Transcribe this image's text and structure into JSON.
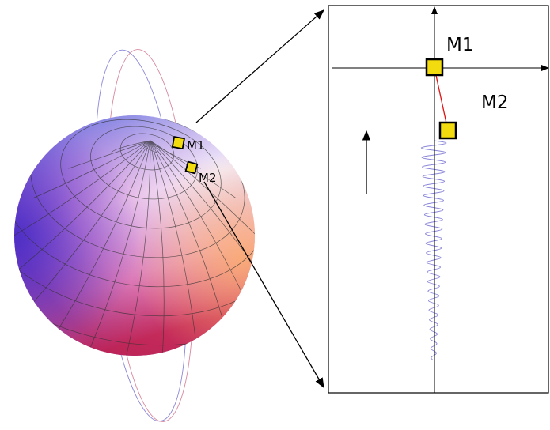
{
  "sphere": {
    "markers": [
      {
        "label": "M1"
      },
      {
        "label": "M2"
      }
    ]
  },
  "zoom": {
    "markers": [
      {
        "label": "M1"
      },
      {
        "label": "M2"
      }
    ]
  }
}
